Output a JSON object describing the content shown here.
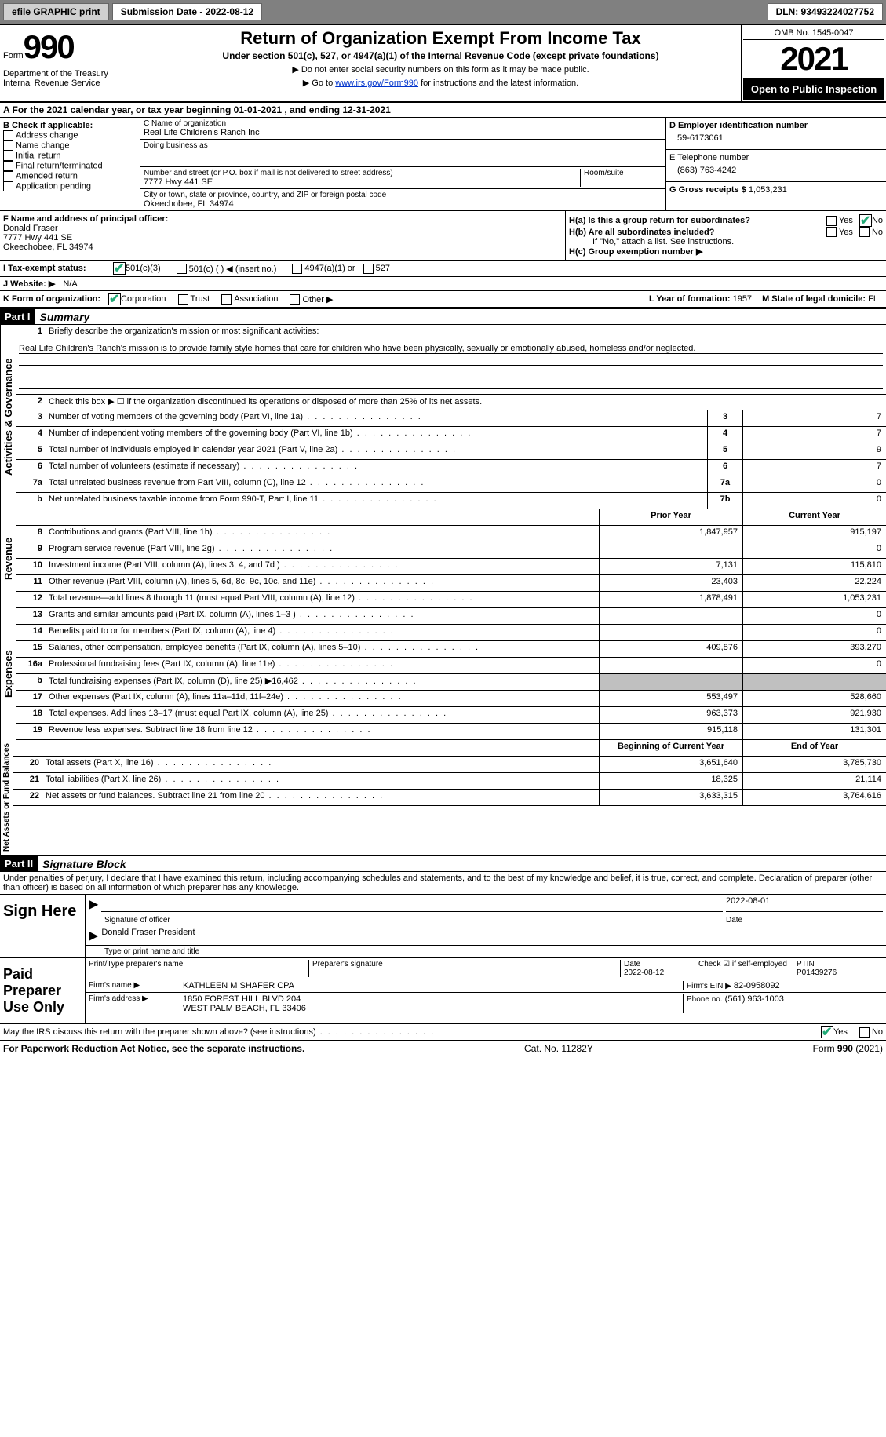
{
  "topbar": {
    "efile": "efile GRAPHIC print",
    "submission_label": "Submission Date - 2022-08-12",
    "dln": "DLN: 93493224027752"
  },
  "header": {
    "form_label": "Form",
    "form_number": "990",
    "dept": "Department of the Treasury",
    "irs": "Internal Revenue Service",
    "title": "Return of Organization Exempt From Income Tax",
    "subtitle": "Under section 501(c), 527, or 4947(a)(1) of the Internal Revenue Code (except private foundations)",
    "note1": "▶ Do not enter social security numbers on this form as it may be made public.",
    "note2_pre": "▶ Go to ",
    "note2_link": "www.irs.gov/Form990",
    "note2_post": " for instructions and the latest information.",
    "omb": "OMB No. 1545-0047",
    "year": "2021",
    "open": "Open to Public Inspection"
  },
  "rowA": "A For the 2021 calendar year, or tax year beginning 01-01-2021   , and ending 12-31-2021",
  "colB": {
    "label": "B Check if applicable:",
    "opts": [
      "Address change",
      "Name change",
      "Initial return",
      "Final return/terminated",
      "Amended return",
      "Application pending"
    ]
  },
  "colC": {
    "name_label": "C Name of organization",
    "name": "Real Life Children's Ranch Inc",
    "dba_label": "Doing business as",
    "addr_label": "Number and street (or P.O. box if mail is not delivered to street address)",
    "room_label": "Room/suite",
    "addr": "7777 Hwy 441 SE",
    "city_label": "City or town, state or province, country, and ZIP or foreign postal code",
    "city": "Okeechobee, FL  34974"
  },
  "colD": {
    "ein_label": "D Employer identification number",
    "ein": "59-6173061",
    "tel_label": "E Telephone number",
    "tel": "(863) 763-4242",
    "gross_label": "G Gross receipts $",
    "gross": "1,053,231"
  },
  "fh": {
    "f_label": "F  Name and address of principal officer:",
    "f_name": "Donald Fraser",
    "f_addr1": "7777 Hwy 441 SE",
    "f_addr2": "Okeechobee, FL  34974",
    "ha": "H(a)  Is this a group return for subordinates?",
    "hb": "H(b)  Are all subordinates included?",
    "hb_note": "If \"No,\" attach a list. See instructions.",
    "hc": "H(c)  Group exemption number ▶",
    "yes": "Yes",
    "no": "No"
  },
  "status": {
    "i": "I  Tax-exempt status:",
    "c3": "501(c)(3)",
    "c": "501(c) (  ) ◀ (insert no.)",
    "a1": "4947(a)(1) or",
    "s527": "527",
    "j": "J  Website: ▶",
    "website": "N/A",
    "k": "K Form of organization:",
    "corp": "Corporation",
    "trust": "Trust",
    "assoc": "Association",
    "other": "Other ▶",
    "l": "L Year of formation:",
    "l_val": "1957",
    "m": "M State of legal domicile:",
    "m_val": "FL"
  },
  "part1": {
    "label": "Part I",
    "title": "Summary",
    "q1": "Briefly describe the organization's mission or most significant activities:",
    "mission": "Real Life Children's Ranch's mission is to provide family style homes that care for children who have been physically, sexually or emotionally abused, homeless and/or neglected.",
    "q2": "Check this box ▶ ☐  if the organization discontinued its operations or disposed of more than 25% of its net assets.",
    "lines_ag": [
      {
        "n": "3",
        "d": "Number of voting members of the governing body (Part VI, line 1a)",
        "b": "3",
        "v": "7"
      },
      {
        "n": "4",
        "d": "Number of independent voting members of the governing body (Part VI, line 1b)",
        "b": "4",
        "v": "7"
      },
      {
        "n": "5",
        "d": "Total number of individuals employed in calendar year 2021 (Part V, line 2a)",
        "b": "5",
        "v": "9"
      },
      {
        "n": "6",
        "d": "Total number of volunteers (estimate if necessary)",
        "b": "6",
        "v": "7"
      },
      {
        "n": "7a",
        "d": "Total unrelated business revenue from Part VIII, column (C), line 12",
        "b": "7a",
        "v": "0"
      },
      {
        "n": "b",
        "d": "Net unrelated business taxable income from Form 990-T, Part I, line 11",
        "b": "7b",
        "v": "0"
      }
    ],
    "col_prior": "Prior Year",
    "col_curr": "Current Year",
    "revenue": [
      {
        "n": "8",
        "d": "Contributions and grants (Part VIII, line 1h)",
        "p": "1,847,957",
        "c": "915,197"
      },
      {
        "n": "9",
        "d": "Program service revenue (Part VIII, line 2g)",
        "p": "",
        "c": "0"
      },
      {
        "n": "10",
        "d": "Investment income (Part VIII, column (A), lines 3, 4, and 7d )",
        "p": "7,131",
        "c": "115,810"
      },
      {
        "n": "11",
        "d": "Other revenue (Part VIII, column (A), lines 5, 6d, 8c, 9c, 10c, and 11e)",
        "p": "23,403",
        "c": "22,224"
      },
      {
        "n": "12",
        "d": "Total revenue—add lines 8 through 11 (must equal Part VIII, column (A), line 12)",
        "p": "1,878,491",
        "c": "1,053,231"
      }
    ],
    "expenses": [
      {
        "n": "13",
        "d": "Grants and similar amounts paid (Part IX, column (A), lines 1–3 )",
        "p": "",
        "c": "0"
      },
      {
        "n": "14",
        "d": "Benefits paid to or for members (Part IX, column (A), line 4)",
        "p": "",
        "c": "0"
      },
      {
        "n": "15",
        "d": "Salaries, other compensation, employee benefits (Part IX, column (A), lines 5–10)",
        "p": "409,876",
        "c": "393,270"
      },
      {
        "n": "16a",
        "d": "Professional fundraising fees (Part IX, column (A), line 11e)",
        "p": "",
        "c": "0"
      },
      {
        "n": "b",
        "d": "Total fundraising expenses (Part IX, column (D), line 25) ▶16,462",
        "p": "shade",
        "c": "shade"
      },
      {
        "n": "17",
        "d": "Other expenses (Part IX, column (A), lines 11a–11d, 11f–24e)",
        "p": "553,497",
        "c": "528,660"
      },
      {
        "n": "18",
        "d": "Total expenses. Add lines 13–17 (must equal Part IX, column (A), line 25)",
        "p": "963,373",
        "c": "921,930"
      },
      {
        "n": "19",
        "d": "Revenue less expenses. Subtract line 18 from line 12",
        "p": "915,118",
        "c": "131,301"
      }
    ],
    "col_beg": "Beginning of Current Year",
    "col_end": "End of Year",
    "net": [
      {
        "n": "20",
        "d": "Total assets (Part X, line 16)",
        "p": "3,651,640",
        "c": "3,785,730"
      },
      {
        "n": "21",
        "d": "Total liabilities (Part X, line 26)",
        "p": "18,325",
        "c": "21,114"
      },
      {
        "n": "22",
        "d": "Net assets or fund balances. Subtract line 21 from line 20",
        "p": "3,633,315",
        "c": "3,764,616"
      }
    ],
    "tab_ag": "Activities & Governance",
    "tab_rev": "Revenue",
    "tab_exp": "Expenses",
    "tab_net": "Net Assets or Fund Balances"
  },
  "part2": {
    "label": "Part II",
    "title": "Signature Block",
    "decl": "Under penalties of perjury, I declare that I have examined this return, including accompanying schedules and statements, and to the best of my knowledge and belief, it is true, correct, and complete. Declaration of preparer (other than officer) is based on all information of which preparer has any knowledge.",
    "sign_here": "Sign Here",
    "sig_officer": "Signature of officer",
    "sig_date": "2022-08-01",
    "date_lbl": "Date",
    "officer_name": "Donald Fraser  President",
    "officer_type": "Type or print name and title",
    "paid": "Paid Preparer Use Only",
    "prep_name_lbl": "Print/Type preparer's name",
    "prep_sig_lbl": "Preparer's signature",
    "prep_date_lbl": "Date",
    "prep_date": "2022-08-12",
    "self_emp": "Check ☑ if self-employed",
    "ptin_lbl": "PTIN",
    "ptin": "P01439276",
    "firm_name_lbl": "Firm's name    ▶",
    "firm_name": "KATHLEEN M SHAFER CPA",
    "firm_ein_lbl": "Firm's EIN ▶",
    "firm_ein": "82-0958092",
    "firm_addr_lbl": "Firm's address ▶",
    "firm_addr1": "1850 FOREST HILL BLVD 204",
    "firm_addr2": "WEST PALM BEACH, FL  33406",
    "phone_lbl": "Phone no.",
    "phone": "(561) 963-1003",
    "discuss": "May the IRS discuss this return with the preparer shown above? (see instructions)"
  },
  "footer": {
    "pra": "For Paperwork Reduction Act Notice, see the separate instructions.",
    "cat": "Cat. No. 11282Y",
    "form": "Form 990 (2021)"
  }
}
